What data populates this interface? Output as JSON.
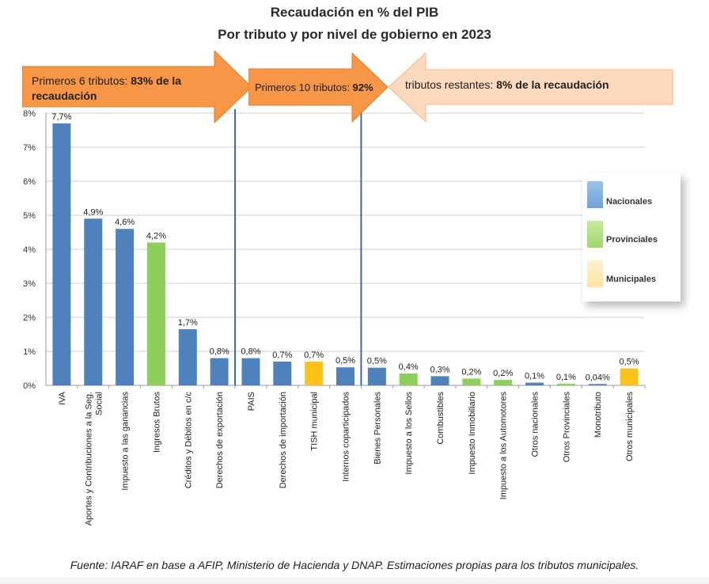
{
  "title_line1": "Recaudación en % del PIB",
  "title_line2": "Por tributo y por nivel de gobierno en 2023",
  "arrows": {
    "a1_text": "Primeros 6 tributos: ",
    "a1_bold": "83% de la recaudación",
    "a2_text": "Primeros 10 tributos: ",
    "a2_bold": "92%",
    "a3_text": "tributos restantes: ",
    "a3_bold": "8% de la recaudación"
  },
  "colors": {
    "nacional": "#4f81bd",
    "provincial": "#8dcf5a",
    "municipal": "#fbc31a",
    "arrow_dark": "#f79646",
    "arrow_light": "#fcd9bc",
    "divider": "#3b6aa8"
  },
  "legend": {
    "nacional": "Nacionales",
    "provincial": "Provinciales",
    "municipal": "Municipales"
  },
  "source": "Fuente: IARAF en base a AFIP, Ministerio de Hacienda y DNAP.  Estimaciones propias para los tributos municipales.",
  "chart_data": {
    "type": "bar",
    "title": "Recaudación en % del PIB — Por tributo y por nivel de gobierno en 2023",
    "ylim": [
      0,
      8
    ],
    "yticks": [
      "0%",
      "1%",
      "2%",
      "3%",
      "4%",
      "5%",
      "6%",
      "7%",
      "8%"
    ],
    "grid": true,
    "legend_position": "right",
    "bars": [
      {
        "label": "IVA",
        "value": 7.7,
        "value_label": "7,7%",
        "level": "nacional"
      },
      {
        "label": "Aportes y Contribuciones a la Seg. Social",
        "value": 4.9,
        "value_label": "4,9%",
        "level": "nacional"
      },
      {
        "label": "Impuesto a las ganancias",
        "value": 4.6,
        "value_label": "4,6%",
        "level": "nacional"
      },
      {
        "label": "Ingresos Brutos",
        "value": 4.2,
        "value_label": "4,2%",
        "level": "provincial"
      },
      {
        "label": "Créditos y Débitos en c/c",
        "value": 1.65,
        "value_label": "1,7%",
        "level": "nacional"
      },
      {
        "label": "Derechos de exportación",
        "value": 0.8,
        "value_label": "0,8%",
        "level": "nacional"
      },
      {
        "label": "PAIS",
        "value": 0.8,
        "value_label": "0,8%",
        "level": "nacional"
      },
      {
        "label": "Derechos de importación",
        "value": 0.7,
        "value_label": "0,7%",
        "level": "nacional"
      },
      {
        "label": "TISH municipal",
        "value": 0.7,
        "value_label": "0,7%",
        "level": "municipal"
      },
      {
        "label": "Internos coparticipados",
        "value": 0.53,
        "value_label": "0,5%",
        "level": "nacional"
      },
      {
        "label": "Bienes Personales",
        "value": 0.52,
        "value_label": "0,5%",
        "level": "nacional"
      },
      {
        "label": "Impuesto a los Sellos",
        "value": 0.35,
        "value_label": "0,4%",
        "level": "provincial"
      },
      {
        "label": "Combustibles",
        "value": 0.27,
        "value_label": "0,3%",
        "level": "nacional"
      },
      {
        "label": "Impuesto Inmobiliario",
        "value": 0.2,
        "value_label": "0,2%",
        "level": "provincial"
      },
      {
        "label": "Impuesto a los Automotores",
        "value": 0.16,
        "value_label": "0,2%",
        "level": "provincial"
      },
      {
        "label": "Otros nacionales",
        "value": 0.08,
        "value_label": "0,1%",
        "level": "nacional"
      },
      {
        "label": "Otros Provinciales",
        "value": 0.05,
        "value_label": "0,1%",
        "level": "provincial"
      },
      {
        "label": "Monotributo",
        "value": 0.04,
        "value_label": "0,04%",
        "level": "nacional"
      },
      {
        "label": "Otros municipales",
        "value": 0.5,
        "value_label": "0,5%",
        "level": "municipal"
      }
    ],
    "dividers_after": [
      6,
      10
    ]
  }
}
